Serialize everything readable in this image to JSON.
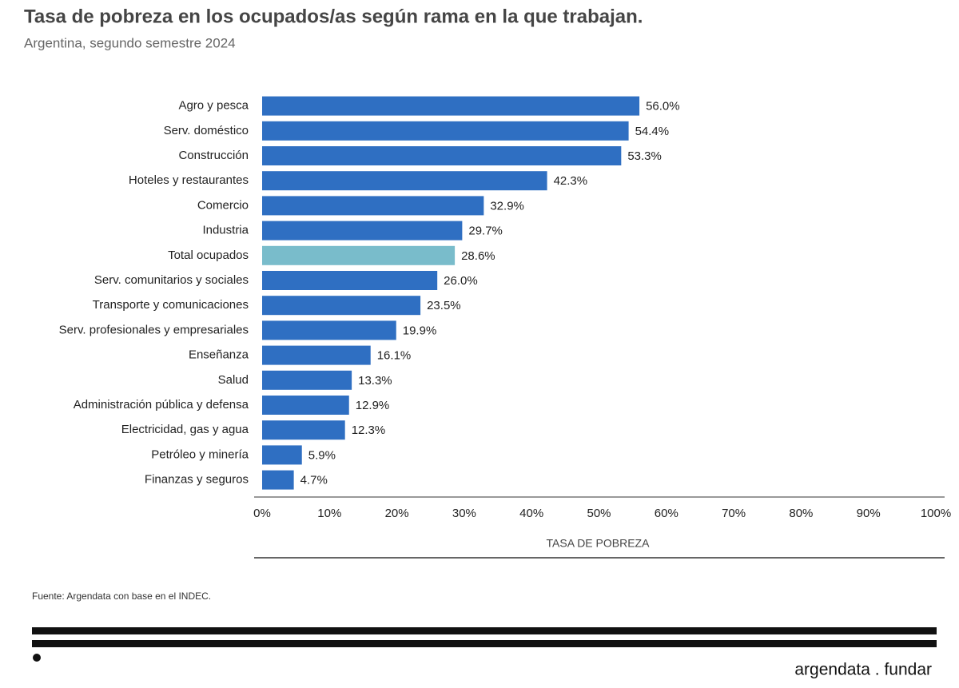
{
  "chart_data": {
    "type": "barh",
    "title": "Tasa de pobreza en los ocupados/as según rama en la que trabajan.",
    "subtitle": "Argentina, segundo semestre 2024",
    "categories": [
      "Agro y pesca",
      "Serv. doméstico",
      "Construcción",
      "Hoteles y restaurantes",
      "Comercio",
      "Industria",
      "Total ocupados",
      "Serv. comunitarios y sociales",
      "Transporte y comunicaciones",
      "Serv. profesionales y empresariales",
      "Enseñanza",
      "Salud",
      "Administración pública y defensa",
      "Electricidad, gas y agua",
      "Petróleo y minería",
      "Finanzas y seguros"
    ],
    "values": [
      56.0,
      54.4,
      53.3,
      42.3,
      32.9,
      29.7,
      28.6,
      26.0,
      23.5,
      19.9,
      16.1,
      13.3,
      12.9,
      12.3,
      5.9,
      4.7
    ],
    "value_labels": [
      "56.0%",
      "54.4%",
      "53.3%",
      "42.3%",
      "32.9%",
      "29.7%",
      "28.6%",
      "26.0%",
      "23.5%",
      "19.9%",
      "16.1%",
      "13.3%",
      "12.9%",
      "12.3%",
      "5.9%",
      "4.7%"
    ],
    "colors": [
      "#2f6fc2",
      "#2f6fc2",
      "#2f6fc2",
      "#2f6fc2",
      "#2f6fc2",
      "#2f6fc2",
      "#79bccb",
      "#2f6fc2",
      "#2f6fc2",
      "#2f6fc2",
      "#2f6fc2",
      "#2f6fc2",
      "#2f6fc2",
      "#2f6fc2",
      "#2f6fc2",
      "#2f6fc2"
    ],
    "xlim": [
      0,
      100
    ],
    "xticks": [
      {
        "value": 0,
        "label": "0%"
      },
      {
        "value": 10,
        "label": "10%"
      },
      {
        "value": 20,
        "label": "20%"
      },
      {
        "value": 30,
        "label": "30%"
      },
      {
        "value": 40,
        "label": "40%"
      },
      {
        "value": 50,
        "label": "50%"
      },
      {
        "value": 60,
        "label": "60%"
      },
      {
        "value": 70,
        "label": "70%"
      },
      {
        "value": 80,
        "label": "80%"
      },
      {
        "value": 90,
        "label": "90%"
      },
      {
        "value": 100,
        "label": "100%"
      }
    ],
    "xlabel": "TASA DE POBREZA",
    "source": "Fuente: Argendata con base en el INDEC.",
    "logo": "argendata . fundar"
  }
}
